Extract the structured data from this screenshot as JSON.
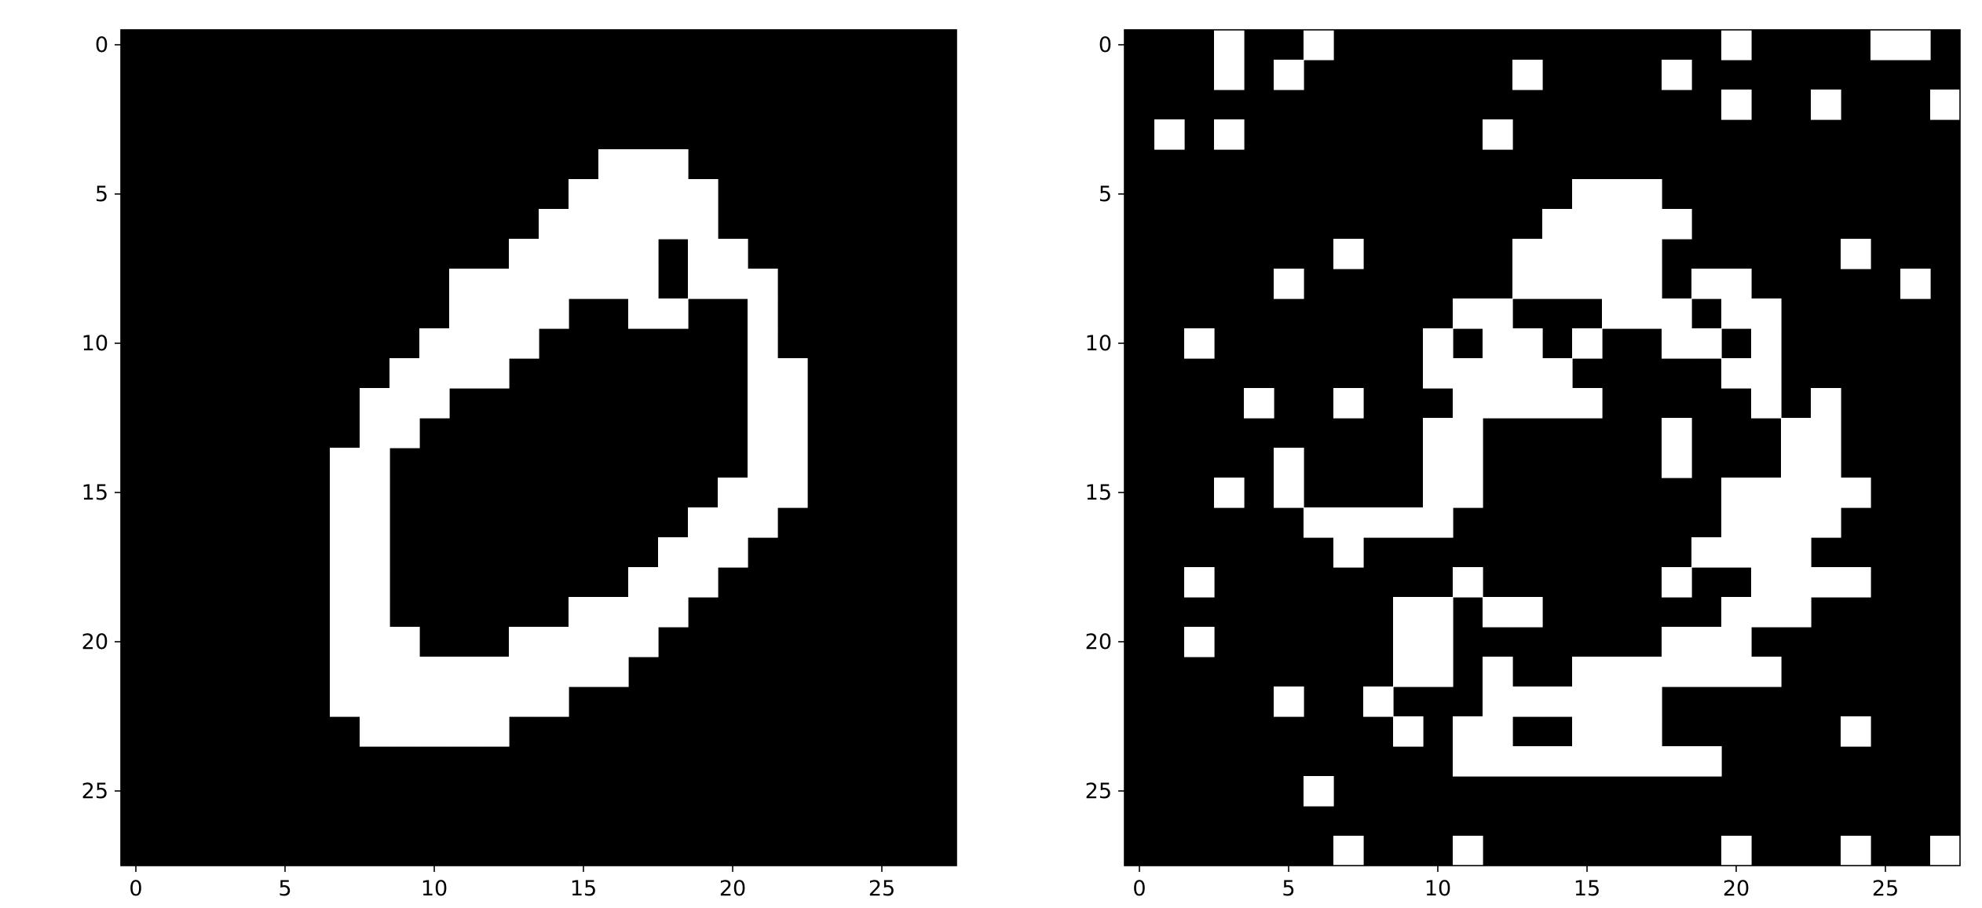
{
  "chart_data": [
    {
      "type": "heatmap",
      "colormap": "gray",
      "x_ticks": [
        0,
        5,
        10,
        15,
        20,
        25
      ],
      "y_ticks": [
        0,
        5,
        10,
        15,
        20,
        25
      ],
      "xlim": [
        -0.5,
        27.5
      ],
      "ylim": [
        27.5,
        -0.5
      ],
      "grid": false,
      "rows": [
        "0000000000000000000000000000",
        "0000000000000000000000000000",
        "0000000000000000000000000000",
        "0000000000000000000000000000",
        "0000000000000000111000000000",
        "0000000000000001111100000000",
        "0000000000000011111100000000",
        "0000000000000111110110000000",
        "0000000000011111110111000000",
        "0000000000011110011001000000",
        "0000000000111100000001000000",
        "0000000001111000000001100000",
        "0000000011100000000001100000",
        "0000000011000000000001100000",
        "0000000110000000000001100000",
        "0000000110000000000011100000",
        "0000000110000000000111000000",
        "0000000110000000001110000000",
        "0000000110000000011100000000",
        "0000000110000001111000000000",
        "0000000111000111110000000000",
        "0000000111111111100000000000",
        "0000000111111110000000000000",
        "0000000011111000000000000000",
        "0000000000000000000000000000",
        "0000000000000000000000000000",
        "0000000000000000000000000000",
        "0000000000000000000000000000"
      ]
    },
    {
      "type": "heatmap",
      "colormap": "gray",
      "x_ticks": [
        0,
        5,
        10,
        15,
        20,
        25
      ],
      "y_ticks": [
        0,
        5,
        10,
        15,
        20,
        25
      ],
      "xlim": [
        -0.5,
        27.5
      ],
      "ylim": [
        27.5,
        -0.5
      ],
      "grid": false,
      "rows": [
        "0001001000000000000010000110",
        "0001010000000100001000000000",
        "0000000000000000000010010001",
        "0101000000001000000000000000",
        "0000000000000000000000000000",
        "0000000000000001110000000000",
        "0000000000000011111000000000",
        "0000000100000111110000001000",
        "0000010000000111110110000010",
        "0000000000011000111011000000",
        "0010000000101101001101000000",
        "0000000000111110000011000000",
        "0000100100011111000001010000",
        "0000000000110000001000110000",
        "0000010000110000001000110000",
        "0001010000110000000011111000",
        "0000001111100000000011110000",
        "0000000100000000000111100000",
        "0010000000010000001001111000",
        "0000000001101100000011100000",
        "0010000001100000001110000000",
        "0000000001101001111111000000",
        "0000010010001111110000000000",
        "0000000001011001110000001000",
        "0000000000011111111100000000",
        "0000001000000000000000000000",
        "0000000000000000000000000000",
        "0000000100010000000010001001"
      ]
    }
  ]
}
